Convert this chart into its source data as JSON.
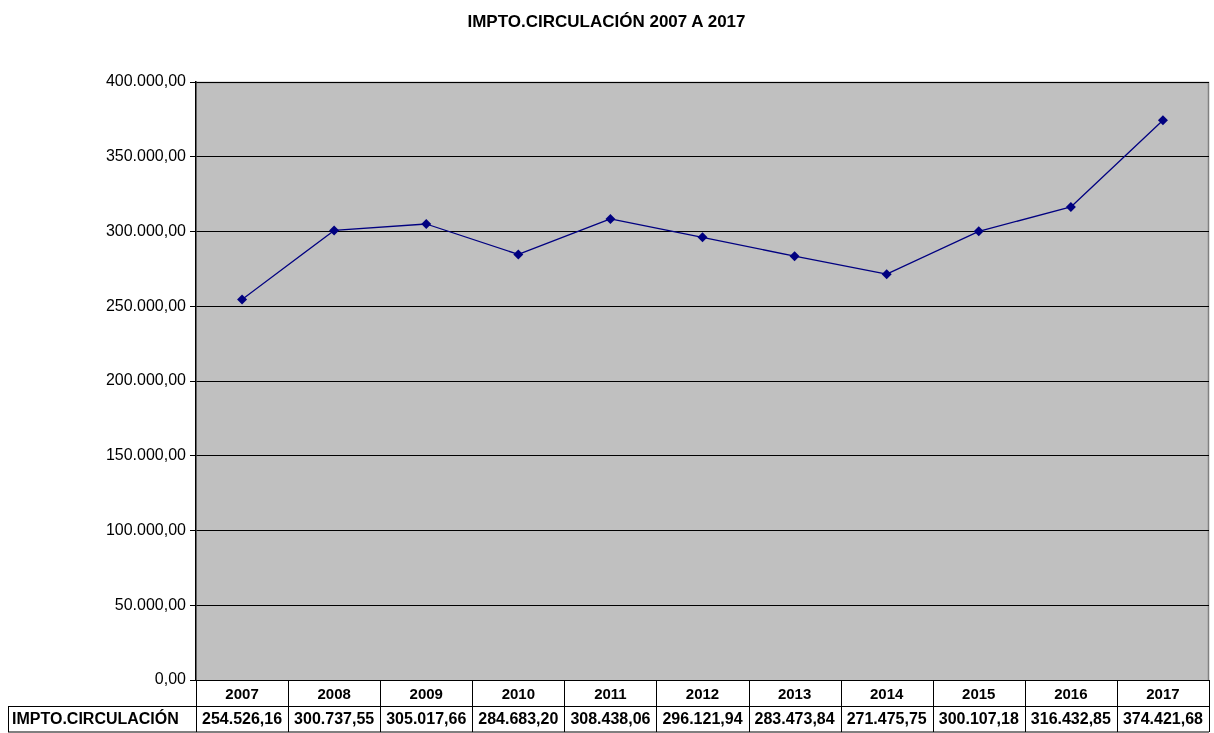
{
  "chart_data": {
    "type": "line",
    "title": "IMPTO.CIRCULACIÓN 2007 A 2017",
    "categories": [
      "2007",
      "2008",
      "2009",
      "2010",
      "2011",
      "2012",
      "2013",
      "2014",
      "2015",
      "2016",
      "2017"
    ],
    "series": [
      {
        "name": "IMPTO.CIRCULACIÓN",
        "color": "#000080",
        "values": [
          254526.16,
          300737.55,
          305017.66,
          284683.2,
          308438.06,
          296121.94,
          283473.84,
          271475.75,
          300107.18,
          316432.85,
          374421.68
        ],
        "value_labels": [
          "254.526,16",
          "300.737,55",
          "305.017,66",
          "284.683,20",
          "308.438,06",
          "296.121,94",
          "283.473,84",
          "271.475,75",
          "300.107,18",
          "316.432,85",
          "374.421,68"
        ]
      }
    ],
    "ylim": [
      0,
      400000
    ],
    "yticks": [
      {
        "value": 0,
        "label": "0,00"
      },
      {
        "value": 50000,
        "label": "50.000,00"
      },
      {
        "value": 100000,
        "label": "100.000,00"
      },
      {
        "value": 150000,
        "label": "150.000,00"
      },
      {
        "value": 200000,
        "label": "200.000,00"
      },
      {
        "value": 250000,
        "label": "250.000,00"
      },
      {
        "value": 300000,
        "label": "300.000,00"
      },
      {
        "value": 350000,
        "label": "350.000,00"
      },
      {
        "value": 400000,
        "label": "400.000,00"
      }
    ],
    "grid": "y",
    "marker": "diamond",
    "line_style": "solid"
  }
}
